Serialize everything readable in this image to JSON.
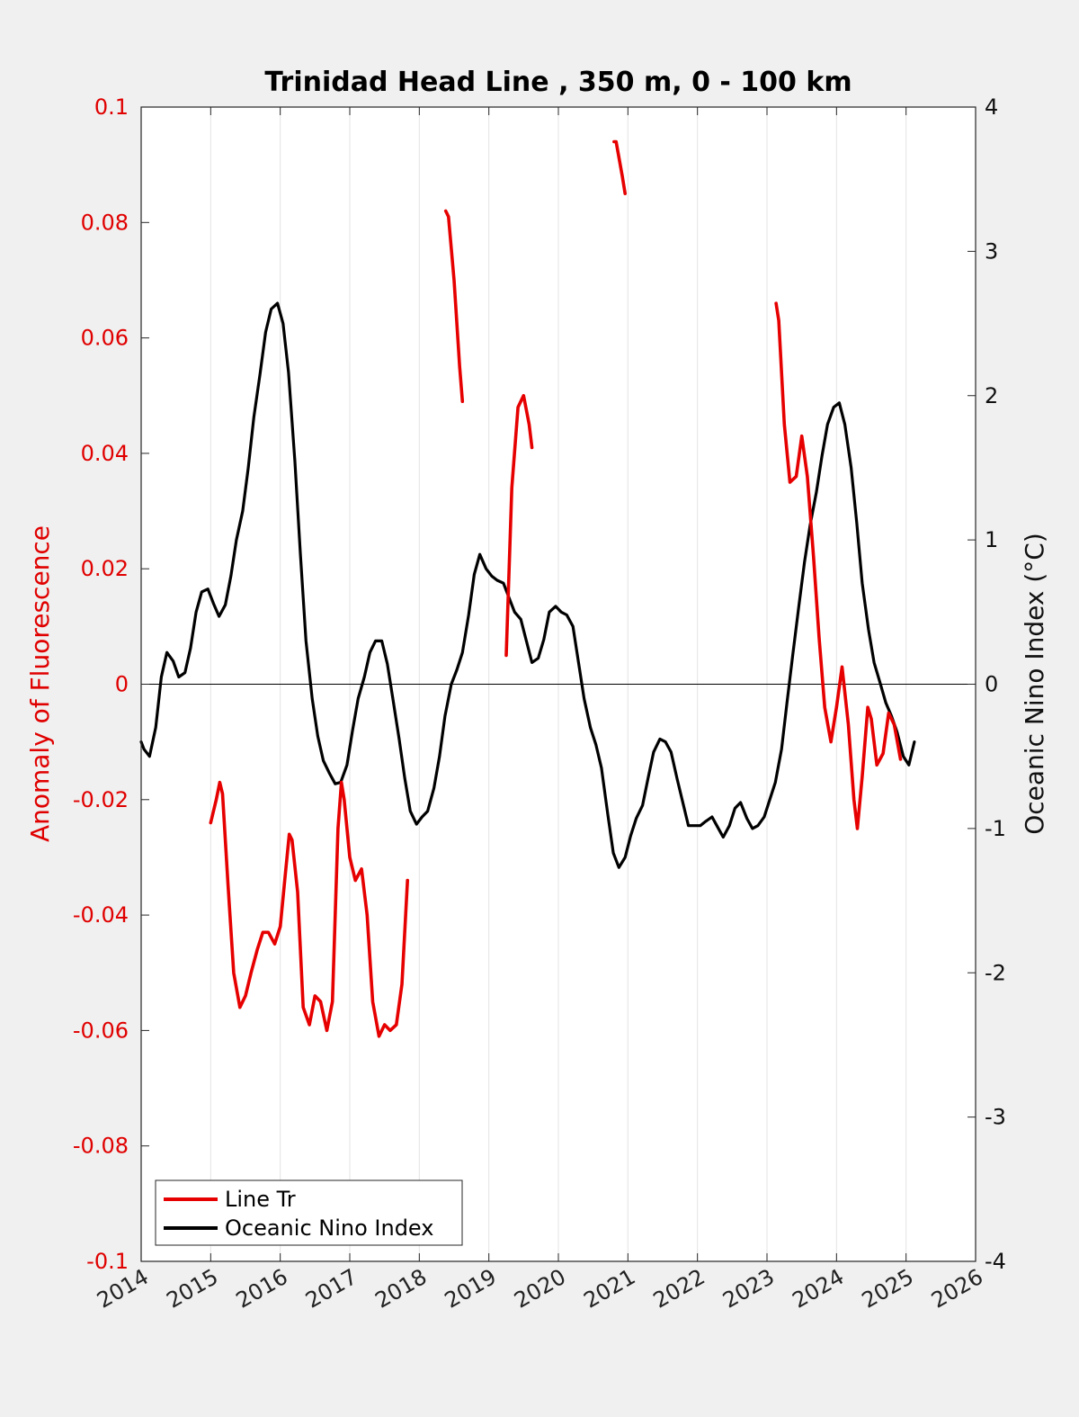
{
  "chart_data": {
    "type": "line",
    "title": "Trinidad Head Line , 350 m, 0 - 100 km",
    "xlabel": "",
    "ylabel_left": "Anomaly of Fluorescence",
    "ylabel_right": "Oceanic Nino Index (°C)",
    "xlim": [
      2014,
      2026
    ],
    "ylim_left": [
      -0.1,
      0.1
    ],
    "ylim_right": [
      -4,
      4
    ],
    "x_ticks": [
      "2014",
      "2015",
      "2016",
      "2017",
      "2018",
      "2019",
      "2020",
      "2021",
      "2022",
      "2023",
      "2024",
      "2025",
      "2026"
    ],
    "y_left_ticks": [
      "0.1",
      "0.08",
      "0.06",
      "0.04",
      "0.02",
      "0",
      "-0.02",
      "-0.04",
      "-0.06",
      "-0.08",
      "-0.1"
    ],
    "y_right_ticks": [
      "4",
      "3",
      "2",
      "1",
      "0",
      "-1",
      "-2",
      "-3",
      "-4"
    ],
    "grid": "vertical",
    "legend_position": "bottom-left",
    "colors": {
      "fluorescence": "#e60000",
      "oni": "#000000",
      "zero_line": "#000000"
    },
    "series": [
      {
        "name": "Line Tr",
        "axis": "left",
        "color": "#e60000",
        "segments": [
          [
            [
              2015.0,
              -0.024
            ],
            [
              2015.08,
              -0.02
            ],
            [
              2015.13,
              -0.017
            ],
            [
              2015.17,
              -0.019
            ],
            [
              2015.25,
              -0.035
            ],
            [
              2015.33,
              -0.05
            ],
            [
              2015.42,
              -0.056
            ],
            [
              2015.5,
              -0.054
            ],
            [
              2015.58,
              -0.05
            ],
            [
              2015.67,
              -0.046
            ],
            [
              2015.75,
              -0.043
            ],
            [
              2015.83,
              -0.043
            ],
            [
              2015.92,
              -0.045
            ],
            [
              2016.0,
              -0.042
            ],
            [
              2016.08,
              -0.032
            ],
            [
              2016.13,
              -0.026
            ],
            [
              2016.17,
              -0.027
            ],
            [
              2016.25,
              -0.036
            ],
            [
              2016.33,
              -0.056
            ],
            [
              2016.42,
              -0.059
            ],
            [
              2016.5,
              -0.054
            ],
            [
              2016.58,
              -0.055
            ],
            [
              2016.67,
              -0.06
            ],
            [
              2016.75,
              -0.055
            ],
            [
              2016.83,
              -0.025
            ],
            [
              2016.88,
              -0.017
            ],
            [
              2016.92,
              -0.02
            ],
            [
              2017.0,
              -0.03
            ],
            [
              2017.08,
              -0.034
            ],
            [
              2017.17,
              -0.032
            ],
            [
              2017.25,
              -0.04
            ],
            [
              2017.33,
              -0.055
            ],
            [
              2017.42,
              -0.061
            ],
            [
              2017.5,
              -0.059
            ],
            [
              2017.58,
              -0.06
            ],
            [
              2017.67,
              -0.059
            ],
            [
              2017.75,
              -0.052
            ],
            [
              2017.83,
              -0.034
            ]
          ],
          [
            [
              2018.38,
              0.082
            ],
            [
              2018.42,
              0.081
            ],
            [
              2018.5,
              0.07
            ],
            [
              2018.58,
              0.055
            ],
            [
              2018.62,
              0.049
            ]
          ],
          [
            [
              2019.25,
              0.005
            ],
            [
              2019.33,
              0.034
            ],
            [
              2019.42,
              0.048
            ],
            [
              2019.5,
              0.05
            ],
            [
              2019.58,
              0.045
            ],
            [
              2019.62,
              0.041
            ]
          ],
          [
            [
              2020.8,
              0.094
            ],
            [
              2020.83,
              0.094
            ],
            [
              2020.92,
              0.088
            ],
            [
              2020.96,
              0.085
            ]
          ],
          [
            [
              2023.13,
              0.066
            ],
            [
              2023.17,
              0.063
            ],
            [
              2023.25,
              0.045
            ],
            [
              2023.33,
              0.035
            ],
            [
              2023.42,
              0.036
            ],
            [
              2023.5,
              0.043
            ],
            [
              2023.58,
              0.036
            ],
            [
              2023.67,
              0.022
            ],
            [
              2023.75,
              0.008
            ],
            [
              2023.83,
              -0.004
            ],
            [
              2023.92,
              -0.01
            ],
            [
              2024.0,
              -0.004
            ],
            [
              2024.08,
              0.003
            ],
            [
              2024.17,
              -0.007
            ],
            [
              2024.25,
              -0.02
            ],
            [
              2024.3,
              -0.025
            ],
            [
              2024.37,
              -0.016
            ],
            [
              2024.45,
              -0.004
            ],
            [
              2024.5,
              -0.006
            ],
            [
              2024.58,
              -0.014
            ],
            [
              2024.67,
              -0.012
            ],
            [
              2024.75,
              -0.005
            ],
            [
              2024.83,
              -0.007
            ],
            [
              2024.92,
              -0.013
            ]
          ]
        ]
      },
      {
        "name": "Oceanic Nino Index",
        "axis": "right",
        "color": "#000000",
        "points": [
          [
            2014.0,
            -0.4
          ],
          [
            2014.04,
            -0.45
          ],
          [
            2014.12,
            -0.5
          ],
          [
            2014.21,
            -0.3
          ],
          [
            2014.29,
            0.05
          ],
          [
            2014.37,
            0.22
          ],
          [
            2014.46,
            0.16
          ],
          [
            2014.54,
            0.05
          ],
          [
            2014.63,
            0.08
          ],
          [
            2014.71,
            0.25
          ],
          [
            2014.79,
            0.5
          ],
          [
            2014.87,
            0.64
          ],
          [
            2014.96,
            0.66
          ],
          [
            2015.04,
            0.56
          ],
          [
            2015.12,
            0.47
          ],
          [
            2015.21,
            0.55
          ],
          [
            2015.29,
            0.75
          ],
          [
            2015.37,
            1.0
          ],
          [
            2015.46,
            1.2
          ],
          [
            2015.54,
            1.5
          ],
          [
            2015.62,
            1.85
          ],
          [
            2015.71,
            2.15
          ],
          [
            2015.79,
            2.44
          ],
          [
            2015.87,
            2.6
          ],
          [
            2015.96,
            2.64
          ],
          [
            2016.04,
            2.5
          ],
          [
            2016.12,
            2.16
          ],
          [
            2016.21,
            1.55
          ],
          [
            2016.29,
            0.9
          ],
          [
            2016.37,
            0.3
          ],
          [
            2016.46,
            -0.1
          ],
          [
            2016.54,
            -0.36
          ],
          [
            2016.62,
            -0.53
          ],
          [
            2016.71,
            -0.62
          ],
          [
            2016.79,
            -0.69
          ],
          [
            2016.87,
            -0.68
          ],
          [
            2016.96,
            -0.56
          ],
          [
            2017.04,
            -0.32
          ],
          [
            2017.12,
            -0.1
          ],
          [
            2017.21,
            0.05
          ],
          [
            2017.29,
            0.22
          ],
          [
            2017.37,
            0.3
          ],
          [
            2017.46,
            0.3
          ],
          [
            2017.54,
            0.14
          ],
          [
            2017.62,
            -0.1
          ],
          [
            2017.71,
            -0.38
          ],
          [
            2017.79,
            -0.65
          ],
          [
            2017.87,
            -0.88
          ],
          [
            2017.96,
            -0.97
          ],
          [
            2018.04,
            -0.92
          ],
          [
            2018.12,
            -0.88
          ],
          [
            2018.21,
            -0.72
          ],
          [
            2018.29,
            -0.5
          ],
          [
            2018.37,
            -0.22
          ],
          [
            2018.46,
            0.0
          ],
          [
            2018.54,
            0.1
          ],
          [
            2018.62,
            0.22
          ],
          [
            2018.71,
            0.48
          ],
          [
            2018.79,
            0.76
          ],
          [
            2018.87,
            0.9
          ],
          [
            2018.96,
            0.8
          ],
          [
            2019.04,
            0.75
          ],
          [
            2019.12,
            0.72
          ],
          [
            2019.21,
            0.7
          ],
          [
            2019.29,
            0.6
          ],
          [
            2019.37,
            0.5
          ],
          [
            2019.46,
            0.45
          ],
          [
            2019.54,
            0.3
          ],
          [
            2019.62,
            0.15
          ],
          [
            2019.71,
            0.18
          ],
          [
            2019.79,
            0.31
          ],
          [
            2019.87,
            0.5
          ],
          [
            2019.96,
            0.54
          ],
          [
            2020.04,
            0.5
          ],
          [
            2020.12,
            0.48
          ],
          [
            2020.21,
            0.4
          ],
          [
            2020.29,
            0.15
          ],
          [
            2020.37,
            -0.1
          ],
          [
            2020.46,
            -0.3
          ],
          [
            2020.54,
            -0.42
          ],
          [
            2020.62,
            -0.58
          ],
          [
            2020.71,
            -0.9
          ],
          [
            2020.79,
            -1.17
          ],
          [
            2020.87,
            -1.27
          ],
          [
            2020.96,
            -1.2
          ],
          [
            2021.04,
            -1.05
          ],
          [
            2021.12,
            -0.93
          ],
          [
            2021.21,
            -0.84
          ],
          [
            2021.29,
            -0.65
          ],
          [
            2021.37,
            -0.47
          ],
          [
            2021.46,
            -0.38
          ],
          [
            2021.54,
            -0.4
          ],
          [
            2021.62,
            -0.47
          ],
          [
            2021.71,
            -0.66
          ],
          [
            2021.79,
            -0.82
          ],
          [
            2021.87,
            -0.98
          ],
          [
            2021.96,
            -0.98
          ],
          [
            2022.04,
            -0.98
          ],
          [
            2022.12,
            -0.95
          ],
          [
            2022.21,
            -0.92
          ],
          [
            2022.29,
            -0.99
          ],
          [
            2022.37,
            -1.06
          ],
          [
            2022.46,
            -0.98
          ],
          [
            2022.54,
            -0.86
          ],
          [
            2022.62,
            -0.82
          ],
          [
            2022.71,
            -0.93
          ],
          [
            2022.79,
            -1.0
          ],
          [
            2022.87,
            -0.98
          ],
          [
            2022.96,
            -0.92
          ],
          [
            2023.04,
            -0.8
          ],
          [
            2023.12,
            -0.68
          ],
          [
            2023.21,
            -0.45
          ],
          [
            2023.29,
            -0.12
          ],
          [
            2023.37,
            0.2
          ],
          [
            2023.46,
            0.55
          ],
          [
            2023.54,
            0.85
          ],
          [
            2023.62,
            1.1
          ],
          [
            2023.71,
            1.33
          ],
          [
            2023.79,
            1.58
          ],
          [
            2023.87,
            1.8
          ],
          [
            2023.96,
            1.92
          ],
          [
            2024.04,
            1.95
          ],
          [
            2024.12,
            1.8
          ],
          [
            2024.21,
            1.5
          ],
          [
            2024.29,
            1.12
          ],
          [
            2024.37,
            0.7
          ],
          [
            2024.46,
            0.38
          ],
          [
            2024.54,
            0.15
          ],
          [
            2024.62,
            0.02
          ],
          [
            2024.71,
            -0.13
          ],
          [
            2024.79,
            -0.22
          ],
          [
            2024.87,
            -0.33
          ],
          [
            2024.96,
            -0.5
          ],
          [
            2025.04,
            -0.56
          ],
          [
            2025.12,
            -0.4
          ]
        ]
      }
    ]
  }
}
